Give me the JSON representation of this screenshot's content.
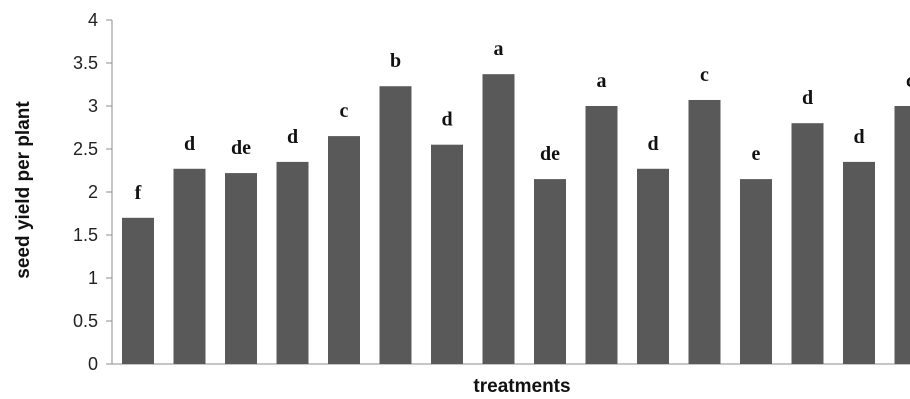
{
  "chart_data": {
    "type": "bar",
    "xlabel": "treatments",
    "ylabel": "seed yield per plant",
    "ylim": [
      0,
      4
    ],
    "yticks": [
      "0",
      "0.5",
      "1",
      "1.5",
      "2",
      "2.5",
      "3",
      "3.5",
      "4"
    ],
    "values": [
      1.7,
      2.27,
      2.22,
      2.35,
      2.65,
      3.23,
      2.55,
      3.37,
      2.15,
      3.0,
      2.27,
      3.07,
      2.15,
      2.8,
      2.35,
      3.0
    ],
    "labels": [
      "f",
      "d",
      "de",
      "d",
      "c",
      "b",
      "d",
      "a",
      "de",
      "a",
      "d",
      "c",
      "e",
      "d",
      "d",
      "c"
    ],
    "bar_color": "#595959",
    "grid": false,
    "legend": "none"
  }
}
